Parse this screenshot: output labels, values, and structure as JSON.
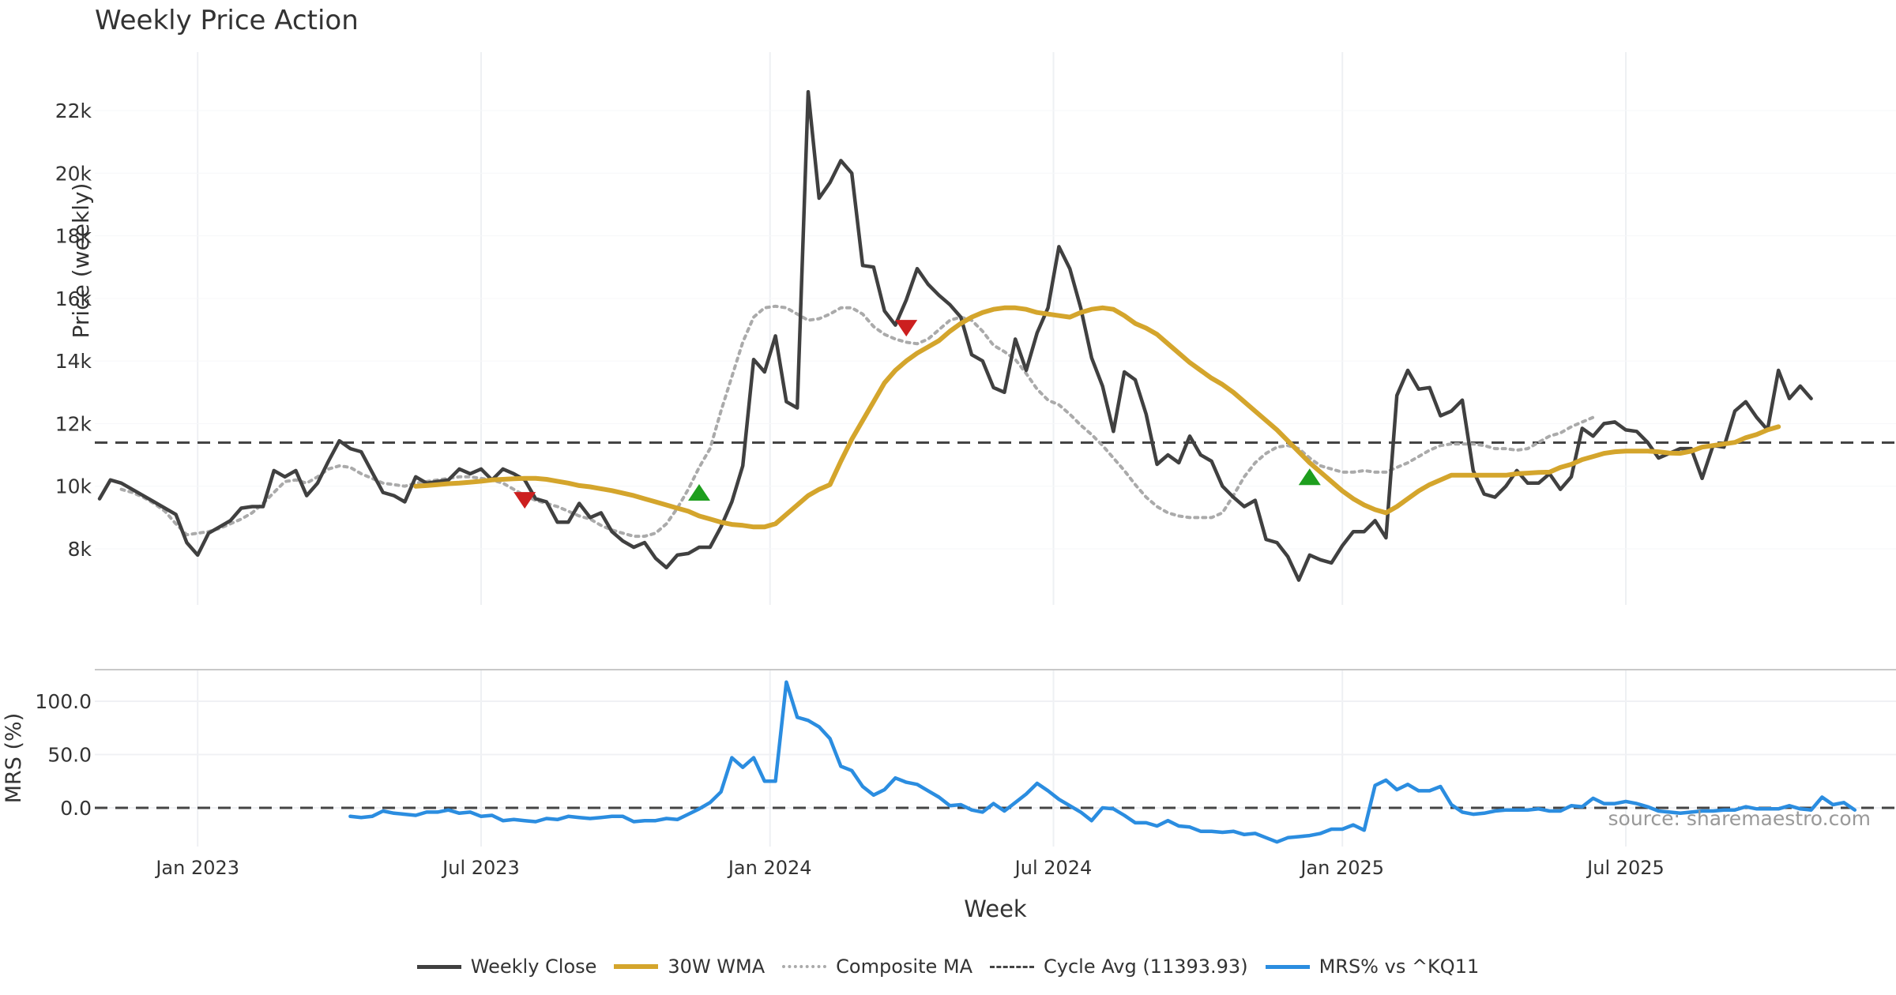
{
  "title": "Weekly Price Action",
  "source": "source: sharemaestro.com",
  "chart_data": [
    {
      "type": "line",
      "panel": "price",
      "ylabel": "Price (weekly)",
      "ylim": [
        6000,
        23500
      ],
      "yticks": [
        8000,
        10000,
        12000,
        14000,
        16000,
        18000,
        20000,
        22000
      ],
      "ytick_labels": [
        "8k",
        "10k",
        "12k",
        "14k",
        "16k",
        "18k",
        "20k",
        "22k"
      ],
      "x_start": "2022-10-24",
      "x_weeks": 154,
      "xticks": [
        {
          "label": "Jan 2023",
          "week": 9
        },
        {
          "label": "Jul 2023",
          "week": 35
        },
        {
          "label": "Jan 2024",
          "week": 61.5
        },
        {
          "label": "Jul 2024",
          "week": 87.5
        },
        {
          "label": "Jan 2025",
          "week": 114
        },
        {
          "label": "Jul 2025",
          "week": 140
        }
      ],
      "xlabel": "Week",
      "series": [
        {
          "name": "Weekly Close",
          "color": "#404040",
          "style": "solid",
          "start": 0,
          "values": [
            9600,
            10200,
            10100,
            9900,
            9700,
            9500,
            9300,
            9100,
            8200,
            7800,
            8500,
            8700,
            8900,
            9300,
            9350,
            9350,
            10500,
            10300,
            10500,
            9700,
            10100,
            10800,
            11450,
            11200,
            11100,
            10450,
            9800,
            9700,
            9500,
            10300,
            10100,
            10150,
            10200,
            10550,
            10400,
            10550,
            10200,
            10550,
            10400,
            10200,
            9600,
            9500,
            8850,
            8850,
            9450,
            9000,
            9150,
            8550,
            8250,
            8050,
            8200,
            7700,
            7400,
            7800,
            7850,
            8050,
            8050,
            8700,
            9500,
            10650,
            14050,
            13650,
            14800,
            12700,
            12500,
            22600,
            19200,
            19700,
            20400,
            20000,
            17050,
            17000,
            15600,
            15150,
            15950,
            16950,
            16450,
            16100,
            15800,
            15400,
            14200,
            14000,
            13150,
            13000,
            14700,
            13700,
            14900,
            15700,
            17650,
            16950,
            15700,
            14100,
            13200,
            11750,
            13650,
            13400,
            12300,
            10700,
            11000,
            10750,
            11600,
            11000,
            10800,
            10000,
            9650,
            9350,
            9550,
            8300,
            8200,
            7750,
            7000,
            7800,
            7650,
            7550,
            8100,
            8550,
            8550,
            8900,
            8350,
            12900,
            13700,
            13100,
            13150,
            12250,
            12400,
            12750,
            10500,
            9750,
            9650,
            10000,
            10500,
            10100,
            10100,
            10400,
            9900,
            10300,
            11850,
            11600,
            12000,
            12050,
            11800,
            11750,
            11400,
            10900,
            11050,
            11200,
            11200,
            10250,
            11300,
            11250,
            12400,
            12700,
            12200,
            11800,
            13700,
            12800,
            13200,
            12800
          ]
        },
        {
          "name": "30W WMA",
          "color": "#d4a52c",
          "style": "solid",
          "start": 29,
          "values": [
            10000,
            10020,
            10050,
            10080,
            10100,
            10130,
            10160,
            10200,
            10220,
            10240,
            10250,
            10250,
            10220,
            10160,
            10100,
            10020,
            9980,
            9920,
            9860,
            9780,
            9700,
            9600,
            9500,
            9400,
            9300,
            9200,
            9050,
            8950,
            8850,
            8780,
            8750,
            8700,
            8700,
            8800,
            9100,
            9400,
            9700,
            9900,
            10050,
            10800,
            11500,
            12100,
            12700,
            13300,
            13700,
            14000,
            14250,
            14450,
            14650,
            14950,
            15200,
            15400,
            15550,
            15650,
            15700,
            15700,
            15650,
            15550,
            15500,
            15450,
            15400,
            15550,
            15650,
            15700,
            15650,
            15450,
            15200,
            15050,
            14850,
            14550,
            14250,
            13950,
            13700,
            13450,
            13250,
            13000,
            12700,
            12400,
            12100,
            11800,
            11450,
            11100,
            10750,
            10450,
            10150,
            9850,
            9600,
            9400,
            9250,
            9150,
            9350,
            9600,
            9850,
            10050,
            10200,
            10350,
            10350,
            10350,
            10350,
            10350,
            10350,
            10400,
            10420,
            10440,
            10450,
            10600,
            10700,
            10850,
            10950,
            11050,
            11100,
            11120,
            11120,
            11120,
            11100,
            11060,
            11050,
            11120,
            11250,
            11300,
            11350,
            11400,
            11550,
            11650,
            11800,
            11900
          ]
        },
        {
          "name": "Composite MA",
          "color": "#aaaaaa",
          "style": "dotted",
          "start": 2,
          "values": [
            9900,
            9800,
            9650,
            9450,
            9200,
            8800,
            8450,
            8500,
            8550,
            8650,
            8800,
            8950,
            9150,
            9450,
            9800,
            10150,
            10200,
            10100,
            10300,
            10550,
            10650,
            10600,
            10400,
            10250,
            10100,
            10050,
            10000,
            10100,
            10150,
            10200,
            10250,
            10300,
            10300,
            10250,
            10200,
            10100,
            9900,
            9700,
            9550,
            9450,
            9350,
            9200,
            9050,
            8950,
            8750,
            8600,
            8500,
            8400,
            8400,
            8500,
            8800,
            9300,
            9900,
            10600,
            11200,
            12400,
            13500,
            14600,
            15400,
            15700,
            15750,
            15700,
            15500,
            15300,
            15350,
            15500,
            15700,
            15700,
            15500,
            15100,
            14850,
            14700,
            14600,
            14550,
            14700,
            15000,
            15300,
            15400,
            15300,
            14950,
            14500,
            14300,
            14050,
            13600,
            13100,
            12750,
            12600,
            12300,
            11950,
            11650,
            11300,
            10900,
            10500,
            10050,
            9650,
            9350,
            9150,
            9050,
            9000,
            9000,
            9000,
            9150,
            9700,
            10300,
            10750,
            11050,
            11250,
            11300,
            11200,
            10900,
            10650,
            10550,
            10450,
            10450,
            10500,
            10450,
            10450,
            10600,
            10750,
            10950,
            11150,
            11300,
            11350,
            11350,
            11350,
            11300,
            11200,
            11200,
            11150,
            11200,
            11400,
            11600,
            11700,
            11900,
            12050,
            12200
          ]
        },
        {
          "name": "Cycle Avg (11393.93)",
          "color": "#444444",
          "style": "dashed",
          "value": 11393.93
        }
      ],
      "annotations": [
        {
          "type": "sell",
          "week": 39,
          "value": 9600,
          "color": "#cc1f1f"
        },
        {
          "type": "buy",
          "week": 55,
          "value": 9750,
          "color": "#1e9e1e"
        },
        {
          "type": "sell",
          "week": 74,
          "value": 15100,
          "color": "#cc1f1f"
        },
        {
          "type": "buy",
          "week": 111,
          "value": 10250,
          "color": "#1e9e1e"
        }
      ]
    },
    {
      "type": "line",
      "panel": "mrs",
      "ylabel": "MRS (%)",
      "ylim": [
        -35,
        130
      ],
      "yticks": [
        0,
        50,
        100
      ],
      "ytick_labels": [
        "0.0",
        "50.0",
        "100.0"
      ],
      "series": [
        {
          "name": "MRS% vs ^KQ11",
          "color": "#2b8de0",
          "style": "solid",
          "start": 23,
          "values": [
            -8,
            -9,
            -8,
            -3,
            -5,
            -6,
            -7,
            -4,
            -4,
            -2,
            -5,
            -4,
            -8,
            -7,
            -12,
            -11,
            -12,
            -13,
            -10,
            -11,
            -8,
            -9,
            -10,
            -9,
            -8,
            -8,
            -13,
            -12,
            -12,
            -10,
            -11,
            -6,
            -1,
            5,
            15,
            47,
            38,
            47,
            25,
            25,
            118,
            85,
            82,
            76,
            65,
            39,
            35,
            20,
            12,
            17,
            28,
            24,
            22,
            16,
            10,
            2,
            3,
            -2,
            -4,
            4,
            -3,
            5,
            13,
            23,
            16,
            8,
            2,
            -4,
            -12,
            0,
            -1,
            -7,
            -14,
            -14,
            -17,
            -12,
            -17,
            -18,
            -22,
            -22,
            -23,
            -22,
            -25,
            -24,
            -28,
            -32,
            -28,
            -27,
            -26,
            -24,
            -20,
            -20,
            -16,
            -21,
            21,
            26,
            17,
            22,
            16,
            16,
            20,
            3,
            -4,
            -6,
            -5,
            -3,
            -2,
            -2,
            -2,
            -1,
            -3,
            -3,
            2,
            1,
            9,
            4,
            4,
            6,
            4,
            1,
            -3,
            -4,
            -5,
            -4,
            -3,
            -3,
            -2,
            -2,
            1,
            -1,
            -1,
            -1,
            2,
            -1,
            -2,
            10,
            3,
            5,
            -2
          ]
        },
        {
          "name": "zero-line",
          "color": "#444444",
          "style": "dashed",
          "value": 0
        }
      ]
    }
  ],
  "legend": [
    {
      "label": "Weekly Close",
      "color": "#404040",
      "style": "solid"
    },
    {
      "label": "30W WMA",
      "color": "#d4a52c",
      "style": "solid"
    },
    {
      "label": "Composite MA",
      "color": "#aaaaaa",
      "style": "dotted"
    },
    {
      "label": "Cycle Avg (11393.93)",
      "color": "#444444",
      "style": "dashed"
    },
    {
      "label": "MRS% vs ^KQ11",
      "color": "#2b8de0",
      "style": "solid"
    }
  ]
}
